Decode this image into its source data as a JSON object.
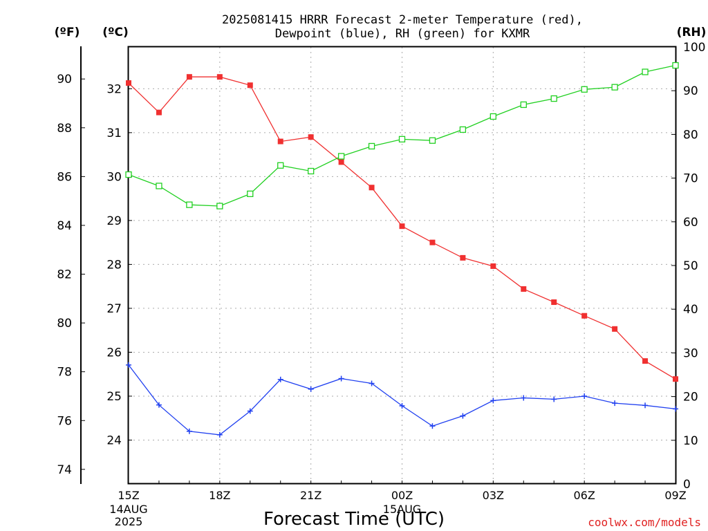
{
  "chart_data": {
    "type": "line",
    "title_line1": "2025081415 HRRR Forecast 2-meter Temperature (red),",
    "title_line2": "Dewpoint (blue), RH (green) for KXMR",
    "xlabel": "Forecast Time (UTC)",
    "left_outer_unit": "(ºF)",
    "left_inner_unit": "(ºC)",
    "right_unit": "(RH)",
    "watermark": "coolwx.com/models",
    "x": [
      "15Z",
      "16Z",
      "17Z",
      "18Z",
      "19Z",
      "20Z",
      "21Z",
      "22Z",
      "23Z",
      "00Z",
      "01Z",
      "02Z",
      "03Z",
      "04Z",
      "05Z",
      "06Z",
      "07Z",
      "08Z",
      "09Z"
    ],
    "x_ticks": [
      {
        "label": "15Z",
        "sub": [
          "14AUG",
          "2025"
        ],
        "index": 0
      },
      {
        "label": "18Z",
        "sub": [],
        "index": 3
      },
      {
        "label": "21Z",
        "sub": [],
        "index": 6
      },
      {
        "label": "00Z",
        "sub": [
          "15AUG"
        ],
        "index": 9
      },
      {
        "label": "03Z",
        "sub": [],
        "index": 12
      },
      {
        "label": "06Z",
        "sub": [],
        "index": 15
      },
      {
        "label": "09Z",
        "sub": [],
        "index": 18
      }
    ],
    "celsius_axis": {
      "range": [
        23.0,
        32.95
      ],
      "ticks": [
        "24",
        "25",
        "26",
        "27",
        "28",
        "29",
        "30",
        "31",
        "32"
      ]
    },
    "fahrenheit_axis": {
      "ticks": [
        "74",
        "76",
        "78",
        "80",
        "82",
        "84",
        "86",
        "88",
        "90"
      ]
    },
    "rh_axis": {
      "range": [
        0,
        100
      ],
      "ticks": [
        "0",
        "10",
        "20",
        "30",
        "40",
        "50",
        "60",
        "70",
        "80",
        "90",
        "100"
      ]
    },
    "grid": true,
    "series": [
      {
        "name": "Temperature",
        "color": "#f03030",
        "marker": "filled-square",
        "axis": "celsius",
        "values": [
          32.13,
          31.46,
          32.27,
          32.27,
          32.08,
          30.8,
          30.9,
          30.33,
          29.75,
          28.87,
          28.5,
          28.15,
          27.96,
          27.44,
          27.14,
          26.83,
          26.53,
          25.8,
          25.39
        ]
      },
      {
        "name": "Dewpoint",
        "color": "#2040f0",
        "marker": "plus",
        "axis": "celsius",
        "values": [
          25.71,
          24.8,
          24.2,
          24.12,
          24.66,
          25.38,
          25.16,
          25.4,
          25.29,
          24.78,
          24.32,
          24.55,
          24.9,
          24.96,
          24.93,
          25.0,
          24.84,
          24.79,
          24.71
        ]
      },
      {
        "name": "RH",
        "color": "#20d020",
        "marker": "open-square",
        "axis": "rh",
        "values": [
          70.8,
          68.2,
          63.9,
          63.6,
          66.4,
          72.9,
          71.6,
          75.0,
          77.3,
          78.9,
          78.6,
          81.1,
          84.1,
          86.8,
          88.2,
          90.3,
          90.8,
          94.3,
          95.8
        ]
      }
    ]
  }
}
